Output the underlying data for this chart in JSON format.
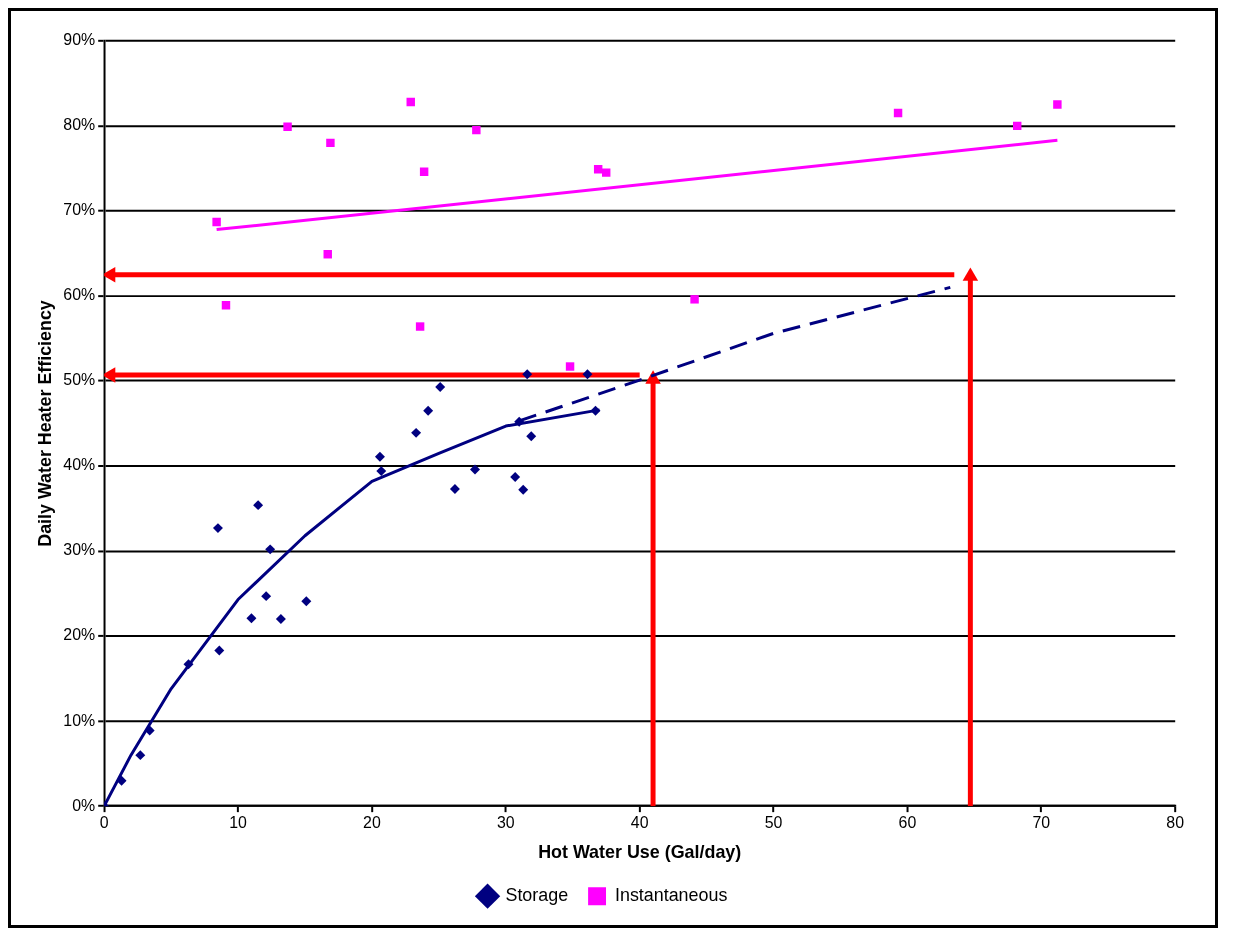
{
  "chart_data": {
    "type": "scatter",
    "xlabel": "Hot Water Use (Gal/day)",
    "ylabel": "Daily Water Heater Efficiency",
    "xlim": [
      0,
      80
    ],
    "xticks": [
      0,
      10,
      20,
      30,
      40,
      50,
      60,
      70,
      80
    ],
    "ylim": [
      0,
      90
    ],
    "yticks": [
      {
        "value": 0,
        "label": "0%"
      },
      {
        "value": 10,
        "label": "10%"
      },
      {
        "value": 20,
        "label": "20%"
      },
      {
        "value": 30,
        "label": "30%"
      },
      {
        "value": 40,
        "label": "40%"
      },
      {
        "value": 50,
        "label": "50%"
      },
      {
        "value": 60,
        "label": "60%"
      },
      {
        "value": 70,
        "label": "70%"
      },
      {
        "value": 80,
        "label": "80%"
      },
      {
        "value": 90,
        "label": "90%"
      }
    ],
    "grid": "y",
    "legend": "bottom",
    "series": [
      {
        "name": "Storage",
        "color": "#000080",
        "marker": "diamond",
        "x": [
          0,
          1.3,
          2.7,
          3.4,
          6.3,
          8.6,
          8.5,
          11.5,
          11.0,
          12.1,
          13.2,
          12.4,
          15.1,
          20.6,
          20.7,
          23.3,
          24.2,
          25.1,
          26.2,
          27.7,
          30.7,
          31.3,
          31.6,
          31.9,
          31.0,
          36.1,
          36.7
        ],
        "values": [
          0,
          3.0,
          6.0,
          8.9,
          16.7,
          18.3,
          32.7,
          35.4,
          22.1,
          24.7,
          22.0,
          30.2,
          24.1,
          41.1,
          39.4,
          43.9,
          46.5,
          49.3,
          37.3,
          39.6,
          38.7,
          37.2,
          50.8,
          43.5,
          45.2,
          50.8,
          46.5
        ]
      },
      {
        "name": "Instantaneous",
        "color": "#ff00ff",
        "marker": "square",
        "x": [
          8.4,
          13.7,
          16.9,
          22.9,
          27.8,
          23.9,
          36.9,
          37.5,
          16.7,
          9.1,
          23.6,
          34.8,
          44.1,
          59.3,
          68.2,
          71.2
        ],
        "values": [
          68.7,
          79.9,
          78.0,
          82.8,
          79.5,
          74.6,
          74.9,
          74.5,
          64.9,
          58.9,
          56.4,
          51.7,
          59.6,
          81.5,
          80.0,
          82.5
        ]
      },
      {
        "type": "line",
        "color": "#ff00ff",
        "marker": "none",
        "x": [
          8.4,
          71.2
        ],
        "values": [
          67.8,
          78.3
        ]
      },
      {
        "type": "line",
        "color": "#000080",
        "marker": "none",
        "x": [
          0,
          2,
          5,
          10,
          15,
          20,
          25,
          30,
          37
        ],
        "values": [
          0,
          6.0,
          13.8,
          24.3,
          31.8,
          38.2,
          41.5,
          44.7,
          46.6
        ]
      },
      {
        "type": "line",
        "color": "#000080",
        "marker": "none",
        "line_style": "dashed",
        "x": [
          31,
          40,
          50,
          63.2
        ],
        "values": [
          45.3,
          50.1,
          55.6,
          61.0
        ]
      },
      {
        "type": "line",
        "color": "#ff0000",
        "marker": "triangle",
        "x": [
          41,
          41
        ],
        "values": [
          0,
          50.2
        ]
      },
      {
        "type": "line",
        "color": "#ff0000",
        "marker": "triangle",
        "x": [
          40,
          0.5
        ],
        "values": [
          50.7,
          50.7
        ]
      },
      {
        "type": "line",
        "color": "#ff0000",
        "marker": "triangle",
        "x": [
          64.7,
          64.7
        ],
        "values": [
          0,
          62.3
        ]
      },
      {
        "type": "line",
        "color": "#ff0000",
        "marker": "triangle",
        "x": [
          63.5,
          0.5
        ],
        "values": [
          62.5,
          62.5
        ]
      }
    ]
  }
}
